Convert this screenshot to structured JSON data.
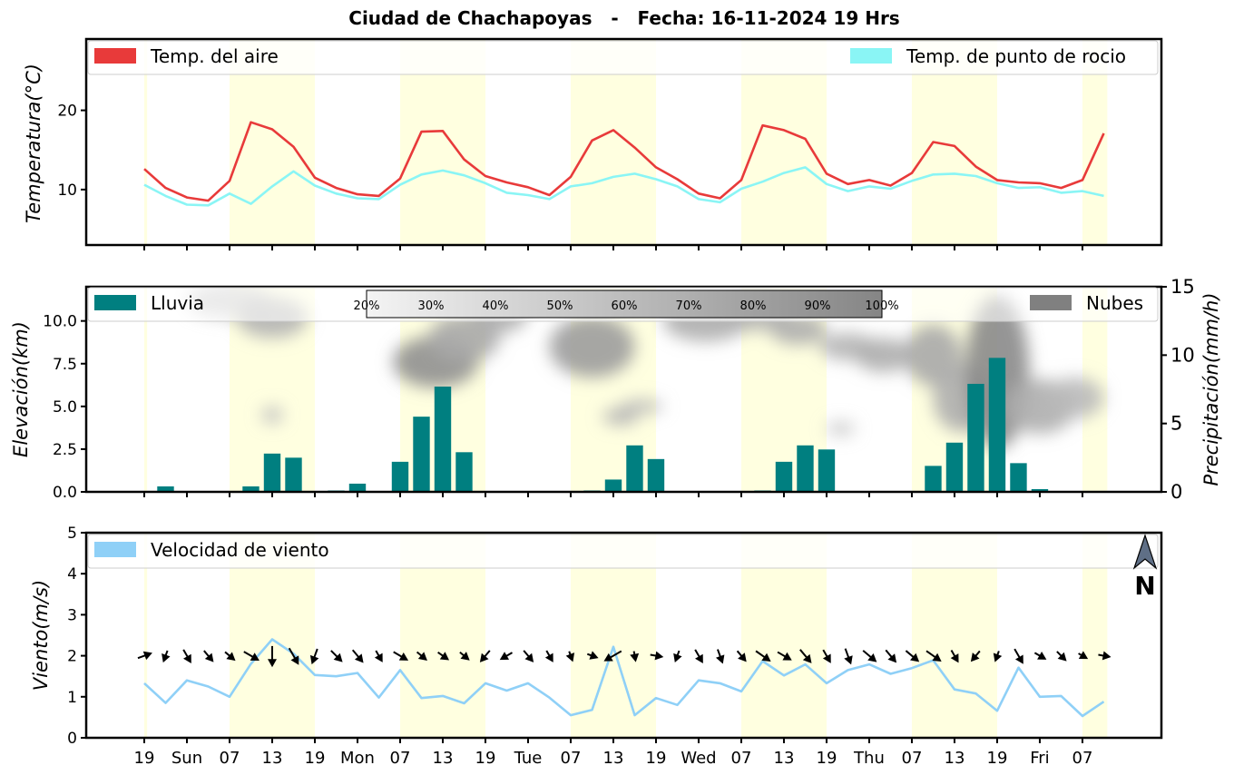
{
  "title": "Ciudad de Chachapoyas   -   Fecha: 16-11-2024 19 Hrs",
  "x_tick_labels": [
    "19",
    "Sun",
    "07",
    "13",
    "19",
    "Mon",
    "07",
    "13",
    "19",
    "Tue",
    "07",
    "13",
    "19",
    "Wed",
    "07",
    "13",
    "19",
    "Thu",
    "07",
    "13",
    "19",
    "Fri",
    "07"
  ],
  "colors": {
    "air": "#e83a3a",
    "dew": "#8af5f5",
    "rain": "#007f80",
    "cloud": "#808080",
    "wind": "#8fd0f7",
    "daylight": "#ffffe0",
    "arrow": "#000000",
    "north": "#5f6f86"
  },
  "chart_data": [
    {
      "type": "line",
      "ylabel": "Temperatura(°C)",
      "ylim": [
        3,
        29
      ],
      "yticks": [
        "10",
        "20"
      ],
      "legend": [
        {
          "label": "Temp. del aire",
          "placement": "top-left"
        },
        {
          "label": "Temp. de punto de rocio",
          "placement": "top-right"
        }
      ],
      "x_hours": [
        0,
        3,
        6,
        9,
        12,
        15,
        18,
        21,
        24,
        27,
        30,
        33,
        36,
        39,
        42,
        45,
        48,
        51,
        54,
        57,
        60,
        63,
        66,
        69,
        72,
        75,
        78,
        81,
        84,
        87,
        90,
        93,
        96,
        99,
        102,
        105,
        108,
        111,
        114,
        117,
        120,
        123,
        126,
        129,
        132,
        135
      ],
      "series": [
        {
          "name": "Temp. del aire",
          "values": [
            12.6,
            10.2,
            9.0,
            8.6,
            11.1,
            18.5,
            17.6,
            15.4,
            11.5,
            10.2,
            9.4,
            9.2,
            11.4,
            17.3,
            17.4,
            13.8,
            11.7,
            10.9,
            10.3,
            9.3,
            11.6,
            16.2,
            17.5,
            15.3,
            12.8,
            11.3,
            9.5,
            8.9,
            11.2,
            18.1,
            17.5,
            16.4,
            12.0,
            10.7,
            11.2,
            10.5,
            12.1,
            16.0,
            15.5,
            12.9,
            11.2,
            10.9,
            10.8,
            10.2,
            11.2,
            17.1
          ]
        },
        {
          "name": "Temp. de punto de rocio",
          "values": [
            10.6,
            9.2,
            8.1,
            8.0,
            9.5,
            8.2,
            10.4,
            12.3,
            10.5,
            9.5,
            8.9,
            8.8,
            10.6,
            11.9,
            12.4,
            11.8,
            10.8,
            9.6,
            9.3,
            8.8,
            10.4,
            10.8,
            11.6,
            12.0,
            11.3,
            10.4,
            8.8,
            8.4,
            10.1,
            11.0,
            12.1,
            12.8,
            10.7,
            9.8,
            10.4,
            10.1,
            11.1,
            11.9,
            12.0,
            11.7,
            10.8,
            10.2,
            10.3,
            9.6,
            9.8,
            9.2
          ]
        }
      ]
    },
    {
      "type": "bar",
      "ylabel": "Elevación(km)",
      "ylabel_right": "Precipitación(mm/h)",
      "ylim": [
        0,
        12
      ],
      "ylim_right": [
        0,
        15
      ],
      "yticks": [
        "0.0",
        "2.5",
        "5.0",
        "7.5",
        "10.0"
      ],
      "yticks_right": [
        "0",
        "5",
        "10",
        "15"
      ],
      "legend": [
        {
          "label": "Lluvia",
          "placement": "top-left"
        },
        {
          "label": "Nubes",
          "placement": "top-right"
        }
      ],
      "cloud_scale": [
        "20%",
        "30%",
        "40%",
        "50%",
        "60%",
        "70%",
        "80%",
        "90%",
        "100%"
      ],
      "x_hours": [
        0,
        3,
        6,
        9,
        12,
        15,
        18,
        21,
        24,
        27,
        30,
        33,
        36,
        39,
        42,
        45,
        48,
        51,
        54,
        57,
        60,
        63,
        66,
        69,
        72,
        75,
        78,
        81,
        84,
        87,
        90,
        93,
        96,
        99,
        102,
        105,
        108,
        111,
        114,
        117,
        120,
        123,
        126,
        129,
        132,
        135
      ],
      "rain_mm_h": [
        0.05,
        0.4,
        0.05,
        0.05,
        0.05,
        0.4,
        2.8,
        2.5,
        0.05,
        0.1,
        0.6,
        0.05,
        2.2,
        5.5,
        7.7,
        2.9,
        0.05,
        0.05,
        0.05,
        0.05,
        0.05,
        0.1,
        0.9,
        3.4,
        2.4,
        0.05,
        0.05,
        0.05,
        0.05,
        0.1,
        2.2,
        3.4,
        3.1,
        0.05,
        0.05,
        0.05,
        0.05,
        1.9,
        3.6,
        7.9,
        9.8,
        2.1,
        0.2,
        0.05,
        0.05,
        0.05
      ],
      "clouds": [
        {
          "x_h": 12,
          "y_km": 11.2,
          "rx_h": 6,
          "ry_km": 1.0,
          "cover": 0.35
        },
        {
          "x_h": 18,
          "y_km": 10.2,
          "rx_h": 5,
          "ry_km": 1.2,
          "cover": 0.5
        },
        {
          "x_h": 18,
          "y_km": 4.5,
          "rx_h": 1.5,
          "ry_km": 0.5,
          "cover": 0.4
        },
        {
          "x_h": 41,
          "y_km": 7.6,
          "rx_h": 6,
          "ry_km": 1.5,
          "cover": 0.8
        },
        {
          "x_h": 45,
          "y_km": 9.0,
          "rx_h": 5,
          "ry_km": 1.4,
          "cover": 0.6
        },
        {
          "x_h": 50,
          "y_km": 10.5,
          "rx_h": 4,
          "ry_km": 1.2,
          "cover": 0.55
        },
        {
          "x_h": 63,
          "y_km": 8.5,
          "rx_h": 6,
          "ry_km": 1.8,
          "cover": 0.7
        },
        {
          "x_h": 67,
          "y_km": 4.4,
          "rx_h": 2.5,
          "ry_km": 0.5,
          "cover": 0.5
        },
        {
          "x_h": 70,
          "y_km": 5.0,
          "rx_h": 3,
          "ry_km": 0.4,
          "cover": 0.45
        },
        {
          "x_h": 79,
          "y_km": 10.0,
          "rx_h": 6,
          "ry_km": 1.2,
          "cover": 0.55
        },
        {
          "x_h": 86,
          "y_km": 10.5,
          "rx_h": 5,
          "ry_km": 1.1,
          "cover": 0.5
        },
        {
          "x_h": 92,
          "y_km": 9.5,
          "rx_h": 4,
          "ry_km": 0.9,
          "cover": 0.55
        },
        {
          "x_h": 99,
          "y_km": 8.5,
          "rx_h": 4,
          "ry_km": 0.8,
          "cover": 0.5
        },
        {
          "x_h": 104,
          "y_km": 8.0,
          "rx_h": 4,
          "ry_km": 1.0,
          "cover": 0.55
        },
        {
          "x_h": 98,
          "y_km": 3.7,
          "rx_h": 2,
          "ry_km": 0.4,
          "cover": 0.35
        },
        {
          "x_h": 111,
          "y_km": 8.0,
          "rx_h": 4,
          "ry_km": 1.8,
          "cover": 0.6
        },
        {
          "x_h": 115,
          "y_km": 5.5,
          "rx_h": 4,
          "ry_km": 2.0,
          "cover": 0.55
        },
        {
          "x_h": 120,
          "y_km": 7.0,
          "rx_h": 4.5,
          "ry_km": 4.5,
          "cover": 0.85
        },
        {
          "x_h": 126,
          "y_km": 5.0,
          "rx_h": 5,
          "ry_km": 1.6,
          "cover": 0.55
        },
        {
          "x_h": 131,
          "y_km": 5.5,
          "rx_h": 4,
          "ry_km": 1.2,
          "cover": 0.45
        }
      ]
    },
    {
      "type": "line",
      "ylabel": "Viento(m/s)",
      "ylim": [
        0,
        5
      ],
      "yticks": [
        "0",
        "1",
        "2",
        "3",
        "4",
        "5"
      ],
      "legend": [
        {
          "label": "Velocidad de viento",
          "placement": "top-left"
        }
      ],
      "north_label": "N",
      "x_hours": [
        0,
        3,
        6,
        9,
        12,
        15,
        18,
        21,
        24,
        27,
        30,
        33,
        36,
        39,
        42,
        45,
        48,
        51,
        54,
        57,
        60,
        63,
        66,
        69,
        72,
        75,
        78,
        81,
        84,
        87,
        90,
        93,
        96,
        99,
        102,
        105,
        108,
        111,
        114,
        117,
        120,
        123,
        126,
        129,
        132,
        135
      ],
      "series": [
        {
          "name": "Velocidad de viento",
          "values": [
            1.33,
            0.85,
            1.4,
            1.25,
            1.0,
            1.8,
            2.4,
            2.05,
            1.53,
            1.5,
            1.58,
            0.98,
            1.65,
            0.97,
            1.02,
            0.84,
            1.33,
            1.15,
            1.33,
            0.98,
            0.55,
            0.68,
            2.22,
            0.55,
            0.97,
            0.8,
            1.4,
            1.33,
            1.13,
            1.87,
            1.52,
            1.79,
            1.33,
            1.65,
            1.79,
            1.56,
            1.7,
            1.89,
            1.18,
            1.08,
            0.66,
            1.71,
            1.0,
            1.02,
            0.53,
            0.88
          ]
        }
      ],
      "wind_dir_deg": [
        250,
        20,
        330,
        320,
        310,
        300,
        0,
        330,
        20,
        315,
        320,
        330,
        300,
        310,
        305,
        310,
        40,
        60,
        320,
        330,
        340,
        290,
        60,
        350,
        280,
        20,
        330,
        340,
        320,
        305,
        300,
        320,
        330,
        340,
        310,
        320,
        310,
        305,
        330,
        40,
        20,
        330,
        300,
        315,
        300,
        280
      ]
    }
  ]
}
